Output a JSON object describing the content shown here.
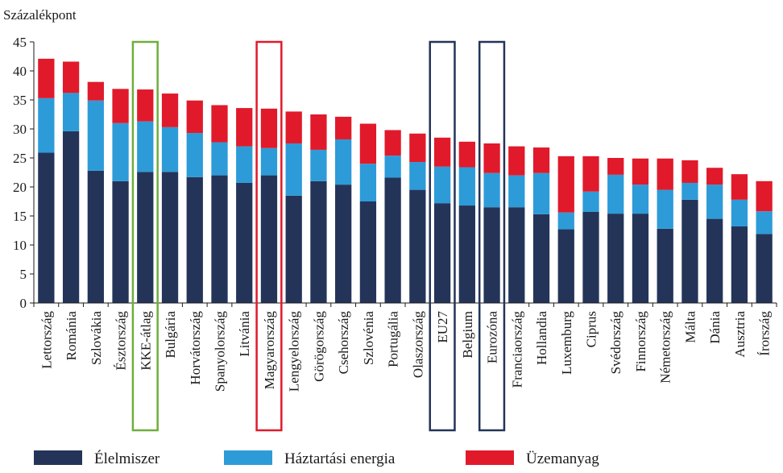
{
  "chart_data": {
    "type": "bar",
    "stacked": true,
    "ylabel": "Százalékpont",
    "ylim": [
      0,
      45
    ],
    "yticks": [
      0,
      5,
      10,
      15,
      20,
      25,
      30,
      35,
      40,
      45
    ],
    "grid": false,
    "legend_position": "bottom",
    "categories": [
      "Lettország",
      "Románia",
      "Szlovákia",
      "Észtország",
      "KKE-átlag",
      "Bulgária",
      "Horvátország",
      "Spanyolország",
      "Litvánia",
      "Magyarország",
      "Lengyelország",
      "Görögország",
      "Csehország",
      "Szlovénia",
      "Portugália",
      "Olaszország",
      "EU27",
      "Belgium",
      "Eurozóna",
      "Franciaország",
      "Hollandia",
      "Luxemburg",
      "Ciprus",
      "Svédország",
      "Finnország",
      "Németország",
      "Málta",
      "Dánia",
      "Ausztria",
      "Írország"
    ],
    "series": [
      {
        "name": "Élelmiszer",
        "color": "#243459",
        "values": [
          25.9,
          29.6,
          22.8,
          21.0,
          22.6,
          22.6,
          21.7,
          22.0,
          20.7,
          22.0,
          18.5,
          21.0,
          20.4,
          17.5,
          21.6,
          19.5,
          17.2,
          16.8,
          16.5,
          16.5,
          15.3,
          12.7,
          15.7,
          15.4,
          15.4,
          12.8,
          17.8,
          14.5,
          13.2,
          11.9
        ]
      },
      {
        "name": "Háztartási energia",
        "color": "#2d9bd8",
        "values": [
          9.4,
          6.6,
          12.1,
          10.0,
          8.7,
          7.7,
          7.6,
          5.7,
          6.3,
          4.7,
          9.0,
          5.4,
          7.8,
          6.5,
          3.8,
          4.8,
          6.3,
          6.6,
          5.9,
          5.5,
          7.1,
          2.9,
          3.5,
          6.7,
          5.0,
          6.7,
          2.9,
          5.9,
          4.6,
          3.9
        ]
      },
      {
        "name": "Üzemanyag",
        "color": "#e01a2b",
        "values": [
          6.8,
          5.4,
          3.2,
          5.9,
          5.5,
          5.8,
          5.6,
          6.4,
          6.6,
          6.8,
          5.5,
          6.1,
          3.9,
          6.9,
          4.4,
          4.9,
          5.0,
          4.4,
          5.1,
          5.0,
          4.4,
          9.7,
          6.1,
          2.9,
          4.5,
          5.4,
          3.9,
          2.9,
          4.4,
          5.2
        ]
      }
    ],
    "highlights": [
      {
        "category": "KKE-átlag",
        "color": "#6fae3c"
      },
      {
        "category": "Magyarország",
        "color": "#e01a2b"
      },
      {
        "category": "EU27",
        "color": "#243459"
      },
      {
        "category": "Eurozóna",
        "color": "#243459"
      }
    ]
  }
}
